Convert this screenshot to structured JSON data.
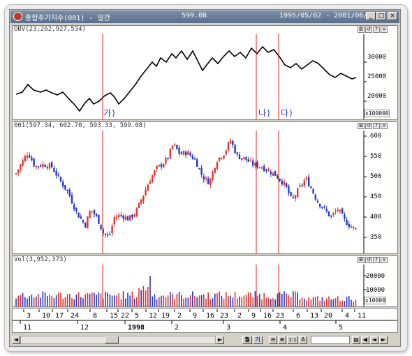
{
  "window": {
    "title": "종합주가지수(001) - 일간",
    "price": "599.08",
    "date_range": "1995/05/02 - 2001/06/22",
    "min_label": "_",
    "max_label": "□",
    "close_label": "×"
  },
  "panes": {
    "obv": {
      "header": "OBV(23,262,927,534)",
      "y_ticks": [
        "30000",
        "25000",
        "20000"
      ],
      "multiplier": "x100000",
      "markers": [
        "가)",
        "나)",
        "다)"
      ]
    },
    "price": {
      "header": "001(597.34, 602.70, 593.33, 599.08)",
      "y_ticks": [
        "600",
        "550",
        "500",
        "450",
        "400",
        "350"
      ]
    },
    "volume": {
      "header": "Vol(3,952,373)",
      "y_ticks": [
        "20000",
        "10000"
      ],
      "multiplier": "x10000"
    }
  },
  "pane_buttons": [
    "⊞",
    "↺",
    "?",
    "×"
  ],
  "x_axis": {
    "days": [
      "3",
      "10",
      "17",
      "24",
      "8",
      "15",
      "22",
      "5",
      "12",
      "19",
      "2",
      "9",
      "16",
      "23",
      "2",
      "9",
      "16",
      "23",
      "6",
      "13",
      "20",
      "4",
      "11"
    ],
    "months": [
      "11",
      "12",
      "1998",
      "2",
      "3",
      "4",
      "5"
    ]
  },
  "toolbar": {
    "month_label": "월",
    "period_label": "기",
    "zoom_out": "⊖",
    "zoom_in": "⊕",
    "ratio": "1:1",
    "font_btn": "A",
    "input_value": ""
  },
  "colors": {
    "up": "#e0342c",
    "down": "#2638c8",
    "marker": "#e02020",
    "line": "#000000",
    "accent": "#2a3ad0"
  }
}
